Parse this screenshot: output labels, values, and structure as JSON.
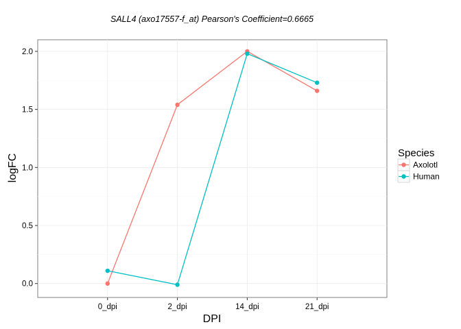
{
  "chart_data": {
    "type": "line",
    "title": "SALL4  (axo17557-f_at) Pearson's Coefficient=0.6665",
    "xlabel": "DPI",
    "ylabel": "logFC",
    "categories": [
      "0_dpi",
      "2_dpi",
      "14_dpi",
      "21_dpi"
    ],
    "yticks": [
      "0.0",
      "0.5",
      "1.0",
      "1.5",
      "2.0"
    ],
    "ytick_values": [
      0.0,
      0.5,
      1.0,
      1.5,
      2.0
    ],
    "ylim": [
      -0.12,
      2.1
    ],
    "grid": true,
    "legend": {
      "title": "Species",
      "placement": "right"
    },
    "series": [
      {
        "name": "Axolotl",
        "color": "#F8766D",
        "values": [
          0.0,
          1.54,
          2.0,
          1.66
        ]
      },
      {
        "name": "Human",
        "color": "#00BFC4",
        "values": [
          0.11,
          -0.01,
          1.98,
          1.73
        ]
      }
    ]
  }
}
